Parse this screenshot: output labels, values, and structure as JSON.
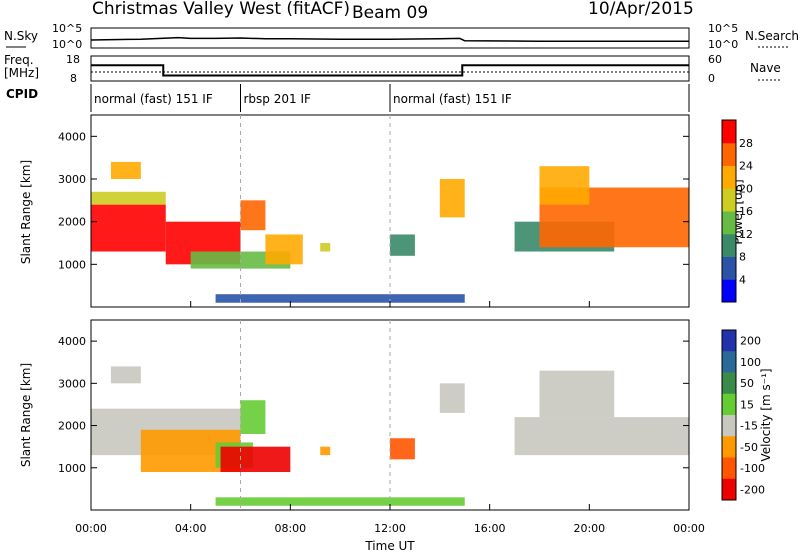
{
  "header": {
    "station": "Christmas Valley West (fitACF)",
    "beam": "Beam 09",
    "date": "10/Apr/2015"
  },
  "panels_labels": {
    "nsky": "N.Sky",
    "nsearch": "N.Search",
    "freq": "Freq.",
    "freq_unit": "[MHz]",
    "nave": "Nave",
    "cpid": "CPID"
  },
  "colors": {
    "power_scale": [
      "#0000ff",
      "#2a53a8",
      "#3a8a6a",
      "#66bb44",
      "#cccc22",
      "#ffaa00",
      "#ff6600",
      "#ff0000"
    ],
    "velocity_scale": [
      "#2233aa",
      "#2a6a9a",
      "#3a8a4a",
      "#66cc33",
      "#c8c8c0",
      "#ff9900",
      "#ff5500",
      "#ee0000"
    ]
  },
  "chart_data": [
    {
      "type": "line",
      "name": "noise-panel",
      "ylabel_left": [
        "10^5",
        "10^0"
      ],
      "ylabel_right": [
        "10^5",
        "10^0"
      ],
      "x_range": [
        0,
        24
      ],
      "series": [
        {
          "name": "N.Sky",
          "x": [
            0,
            2,
            3.5,
            4,
            5,
            6,
            7,
            8,
            10,
            12,
            14,
            14.8,
            15,
            18,
            20,
            24
          ],
          "y": [
            2.0,
            2.2,
            2.6,
            2.4,
            2.4,
            2.5,
            2.3,
            2.3,
            2.2,
            2.2,
            2.3,
            2.4,
            1.8,
            1.7,
            1.7,
            1.7
          ]
        }
      ]
    },
    {
      "type": "line",
      "name": "frequency-panel",
      "yticks_left": [
        8,
        18
      ],
      "yticks_right": [
        0,
        60
      ],
      "x_range": [
        0,
        24
      ],
      "series": [
        {
          "name": "Freq.",
          "x": [
            0,
            2.9,
            2.9,
            14.9,
            14.9,
            24
          ],
          "y": [
            14.3,
            14.3,
            10.2,
            10.2,
            14.3,
            14.3
          ]
        }
      ]
    },
    {
      "type": "table",
      "name": "cpid-panel",
      "segments": [
        {
          "start": 0,
          "end": 6,
          "label": "normal (fast) 151 IF"
        },
        {
          "start": 6,
          "end": 12,
          "label": "rbsp 201 IF"
        },
        {
          "start": 12,
          "end": 24,
          "label": "normal (fast) 151 IF"
        }
      ]
    },
    {
      "type": "heatmap",
      "name": "power-panel",
      "ylabel": "Slant Range [km]",
      "x_range": [
        0,
        24
      ],
      "ylim": [
        0,
        4500
      ],
      "yticks": [
        1000,
        2000,
        3000,
        4000
      ],
      "colorbar_label": "Power [dB]",
      "colorbar_ticks": [
        4,
        8,
        12,
        16,
        20,
        24,
        28
      ],
      "regions": [
        {
          "x0": 0.0,
          "x1": 3.0,
          "y0": 1300,
          "y1": 2400,
          "level": 7
        },
        {
          "x0": 0.0,
          "x1": 3.0,
          "y0": 2400,
          "y1": 2700,
          "level": 4
        },
        {
          "x0": 0.8,
          "x1": 2.0,
          "y0": 3000,
          "y1": 3400,
          "level": 5
        },
        {
          "x0": 3.0,
          "x1": 6.0,
          "y0": 1000,
          "y1": 2000,
          "level": 7
        },
        {
          "x0": 6.0,
          "x1": 7.0,
          "y0": 1800,
          "y1": 2500,
          "level": 6
        },
        {
          "x0": 4.0,
          "x1": 8.0,
          "y0": 900,
          "y1": 1300,
          "level": 3
        },
        {
          "x0": 7.0,
          "x1": 8.5,
          "y0": 1000,
          "y1": 1700,
          "level": 5
        },
        {
          "x0": 9.2,
          "x1": 9.6,
          "y0": 1300,
          "y1": 1500,
          "level": 4
        },
        {
          "x0": 12.0,
          "x1": 13.0,
          "y0": 1200,
          "y1": 1700,
          "level": 2
        },
        {
          "x0": 14.0,
          "x1": 15.0,
          "y0": 2100,
          "y1": 3000,
          "level": 5
        },
        {
          "x0": 17.0,
          "x1": 21.0,
          "y0": 1300,
          "y1": 2000,
          "level": 2
        },
        {
          "x0": 18.0,
          "x1": 24.0,
          "y0": 1400,
          "y1": 2800,
          "level": 6
        },
        {
          "x0": 18.0,
          "x1": 20.0,
          "y0": 2400,
          "y1": 3300,
          "level": 5
        },
        {
          "x0": 5.0,
          "x1": 15.0,
          "y0": 100,
          "y1": 300,
          "level": 1
        }
      ]
    },
    {
      "type": "heatmap",
      "name": "velocity-panel",
      "ylabel": "Slant Range [km]",
      "xlabel": "Time UT",
      "x_range": [
        0,
        24
      ],
      "xticks": [
        "00:00",
        "04:00",
        "08:00",
        "12:00",
        "16:00",
        "20:00",
        "00:00"
      ],
      "ylim": [
        0,
        4500
      ],
      "yticks": [
        1000,
        2000,
        3000,
        4000
      ],
      "colorbar_label": "Velocity [m s⁻¹]",
      "colorbar_ticks": [
        200,
        100,
        50,
        15,
        -15,
        -50,
        -100,
        -200
      ],
      "regions": [
        {
          "x0": 0.0,
          "x1": 6.0,
          "y0": 1300,
          "y1": 2400,
          "level": 4
        },
        {
          "x0": 2.0,
          "x1": 6.0,
          "y0": 900,
          "y1": 1900,
          "level": 5
        },
        {
          "x0": 5.0,
          "x1": 6.5,
          "y0": 1000,
          "y1": 1600,
          "level": 3
        },
        {
          "x0": 6.0,
          "x1": 7.0,
          "y0": 1800,
          "y1": 2600,
          "level": 3
        },
        {
          "x0": 5.2,
          "x1": 8.0,
          "y0": 900,
          "y1": 1500,
          "level": 7
        },
        {
          "x0": 0.8,
          "x1": 2.0,
          "y0": 3000,
          "y1": 3400,
          "level": 4
        },
        {
          "x0": 9.2,
          "x1": 9.6,
          "y0": 1300,
          "y1": 1500,
          "level": 5
        },
        {
          "x0": 12.0,
          "x1": 13.0,
          "y0": 1200,
          "y1": 1700,
          "level": 6
        },
        {
          "x0": 14.0,
          "x1": 15.0,
          "y0": 2300,
          "y1": 3000,
          "level": 4
        },
        {
          "x0": 17.0,
          "x1": 24.0,
          "y0": 1300,
          "y1": 2200,
          "level": 4
        },
        {
          "x0": 18.0,
          "x1": 21.0,
          "y0": 2200,
          "y1": 3300,
          "level": 4
        },
        {
          "x0": 5.0,
          "x1": 15.0,
          "y0": 100,
          "y1": 300,
          "level": 3
        }
      ]
    }
  ]
}
